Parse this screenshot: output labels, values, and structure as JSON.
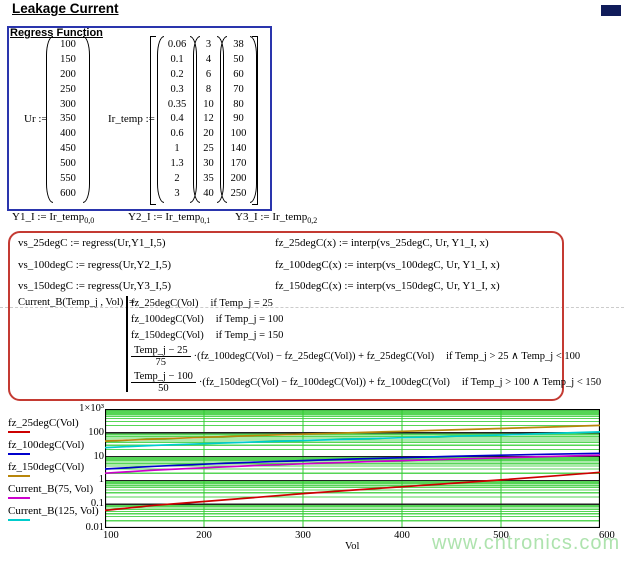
{
  "page": {
    "title": "Leakage Current",
    "watermark": "www.cntronics.com"
  },
  "regress": {
    "title": "Regress Function",
    "ur_label": "Ur :=",
    "ur_values": [
      "100",
      "150",
      "200",
      "250",
      "300",
      "350",
      "400",
      "450",
      "500",
      "550",
      "600"
    ],
    "ir_label": "Ir_temp :=",
    "ir_columns": [
      [
        "0.06",
        "0.1",
        "0.2",
        "0.3",
        "0.35",
        "0.4",
        "0.6",
        "1",
        "1.3",
        "2",
        "3"
      ],
      [
        "3",
        "4",
        "6",
        "8",
        "10",
        "12",
        "20",
        "25",
        "30",
        "35",
        "40"
      ],
      [
        "38",
        "50",
        "60",
        "70",
        "80",
        "90",
        "100",
        "140",
        "170",
        "200",
        "250"
      ]
    ],
    "assignments": [
      {
        "text": "Y1_I := Ir_temp",
        "sub": "0,0"
      },
      {
        "text": "Y2_I := Ir_temp",
        "sub": "0,1"
      },
      {
        "text": "Y3_I := Ir_temp",
        "sub": "0,2"
      }
    ]
  },
  "formulas": {
    "regress_lines": [
      "vs_25degC := regress(Ur,Y1_I,5)",
      "vs_100degC := regress(Ur,Y2_I,5)",
      "vs_150degC := regress(Ur,Y3_I,5)"
    ],
    "interp_lines": [
      "fz_25degC(x) := interp(vs_25degC, Ur, Y1_I, x)",
      "fz_100degC(x) := interp(vs_100degC, Ur, Y1_I, x)",
      "fz_150degC(x) := interp(vs_150degC, Ur, Y1_I, x)"
    ],
    "current_lhs": "Current_B(Temp_j , Vol) :=",
    "branches": [
      {
        "expr": "fz_25degC(Vol)",
        "cond": "if  Temp_j = 25"
      },
      {
        "expr": "fz_100degC(Vol)",
        "cond": "if  Temp_j = 100"
      },
      {
        "expr": "fz_150degC(Vol)",
        "cond": "if  Temp_j = 150"
      },
      {
        "frac_num": "Temp_j − 25",
        "frac_den": "75",
        "expr": "·(fz_100degC(Vol) − fz_25degC(Vol)) + fz_25degC(Vol)",
        "cond": "if  Temp_j > 25 ∧ Temp_j < 100"
      },
      {
        "frac_num": "Temp_j − 100",
        "frac_den": "50",
        "expr": "·(fz_150degC(Vol) − fz_100degC(Vol)) + fz_100degC(Vol)",
        "cond": "if  Temp_j > 100 ∧ Temp_j < 150"
      }
    ]
  },
  "chart_data": {
    "type": "line",
    "x": [
      100,
      150,
      200,
      250,
      300,
      350,
      400,
      450,
      500,
      550,
      600
    ],
    "series": [
      {
        "name": "fz_25degC(Vol)",
        "color": "#cc0000",
        "values": [
          0.055,
          0.09,
          0.13,
          0.19,
          0.28,
          0.39,
          0.54,
          0.75,
          1.05,
          1.5,
          2.2
        ]
      },
      {
        "name": "fz_100degC(Vol)",
        "color": "#0000cc",
        "values": [
          3,
          3.9,
          4.8,
          5.8,
          6.8,
          7.9,
          9,
          10.2,
          11.4,
          12.6,
          13.8
        ]
      },
      {
        "name": "fz_150degC(Vol)",
        "color": "#b8860b",
        "values": [
          45,
          55,
          65,
          76,
          88,
          101,
          116,
          132,
          151,
          175,
          205
        ]
      },
      {
        "name": "Current_B(75, Vol)",
        "color": "#cc00cc",
        "values": [
          2,
          2.7,
          3.4,
          4.2,
          5,
          5.9,
          6.8,
          7.8,
          8.9,
          10.1,
          11.4
        ]
      },
      {
        "name": "Current_B(125, Vol)",
        "color": "#00cccc",
        "values": [
          24,
          29.5,
          35,
          41,
          47.5,
          54.5,
          62.5,
          71,
          81,
          94,
          109
        ]
      }
    ],
    "xlabel": "Vol",
    "x_ticks": [
      100,
      200,
      300,
      400,
      500,
      600
    ],
    "y_ticks": [
      "1×10³",
      "100",
      "10",
      "1",
      "0.1",
      "0.01"
    ],
    "xlim": [
      100,
      600
    ],
    "ylim": [
      0.01,
      1000
    ],
    "ylog": true,
    "grid": true,
    "x_gridlines": [
      200,
      300,
      400,
      500
    ],
    "grid_minor_color": "#56d556",
    "grid_major_color": "#222222",
    "grid_vert_color": "#33cc33",
    "legend_position": "left"
  }
}
